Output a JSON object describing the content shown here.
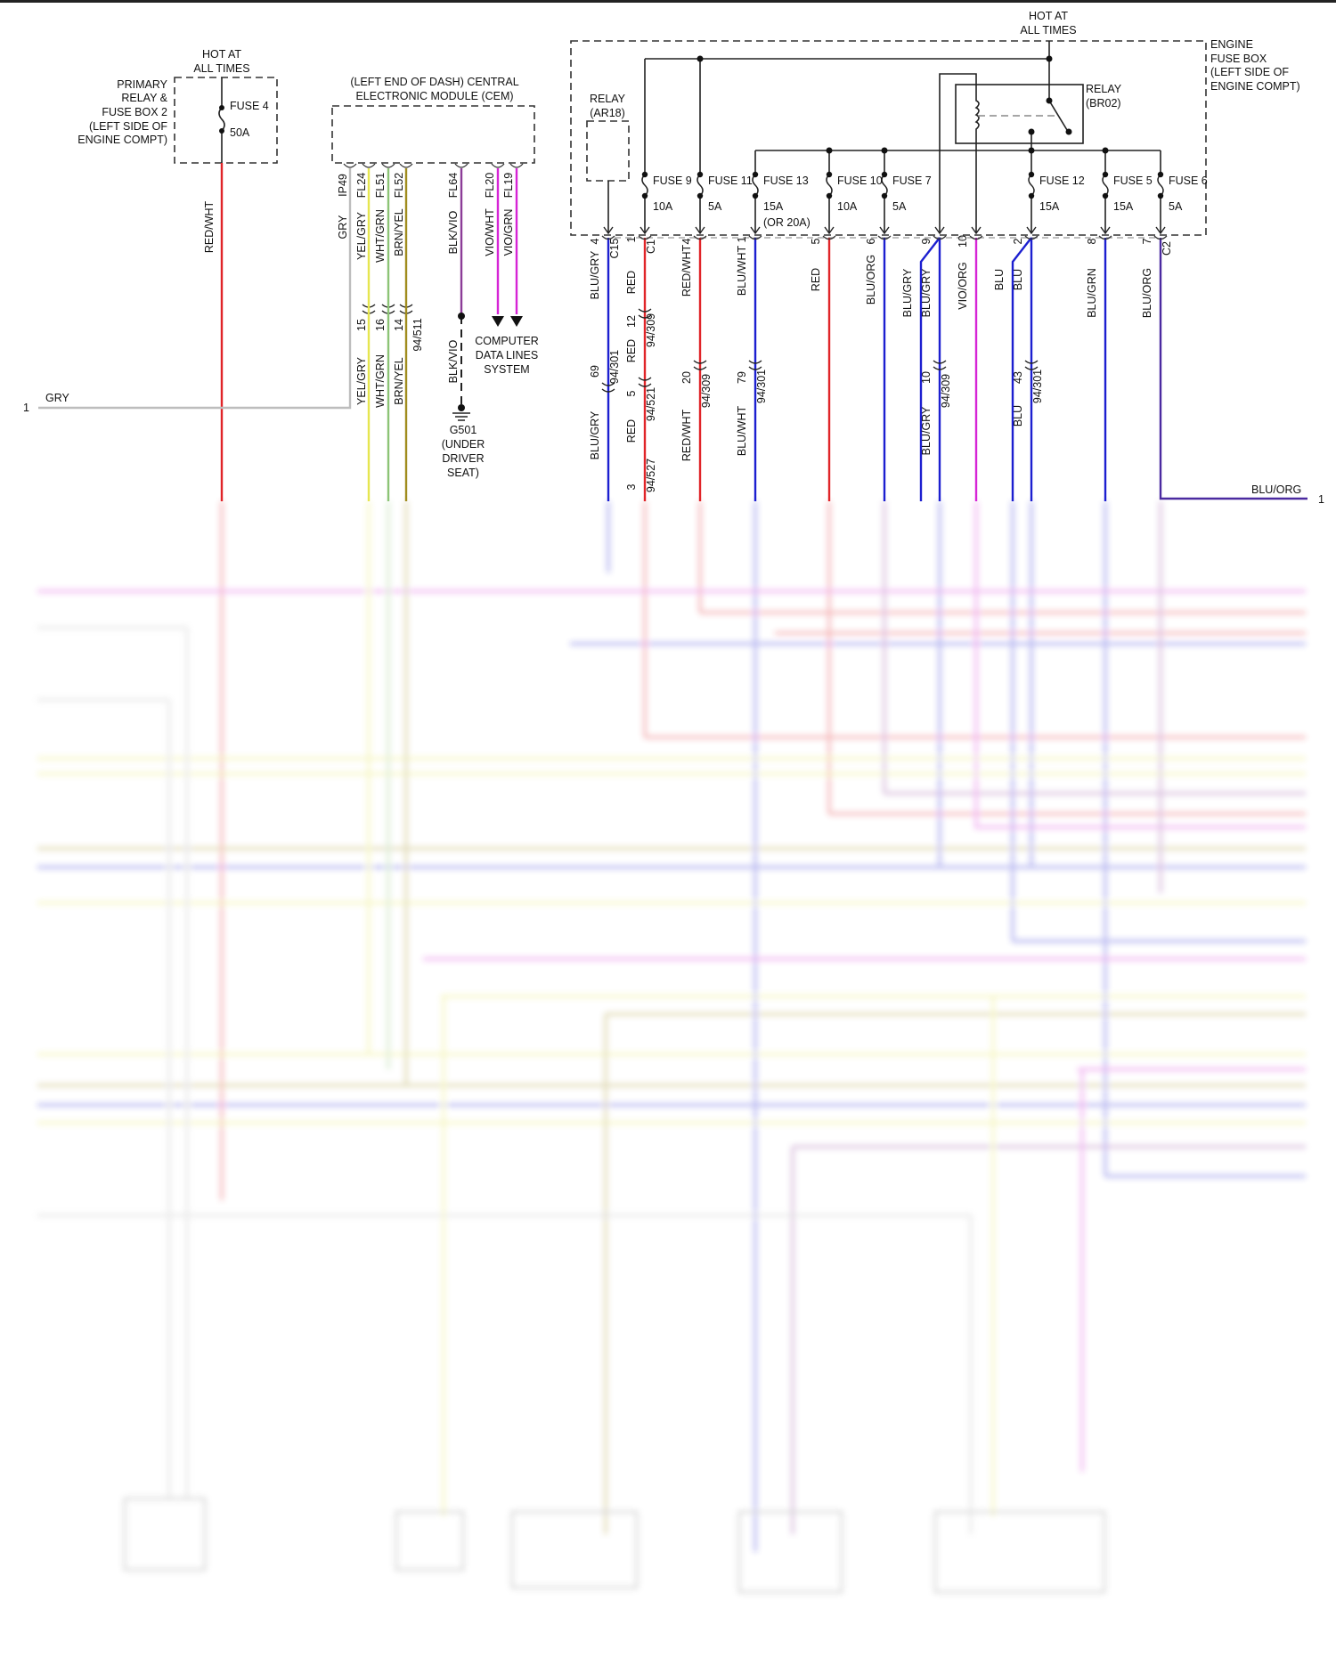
{
  "colors": {
    "red": "#e02428",
    "blue": "#1c1fd0",
    "magenta": "#d624d6",
    "yellow": "#e6e650",
    "green": "#8cc476",
    "olive": "#a08c1e",
    "gray": "#bdbdbd",
    "purple": "#8c3c98",
    "blu_org": "#4b2aa0"
  },
  "fuse_box_2": {
    "hot": [
      "HOT AT",
      "ALL TIMES"
    ],
    "name": [
      "PRIMARY",
      "RELAY &",
      "FUSE BOX 2",
      "(LEFT SIDE OF",
      "ENGINE COMPT)"
    ],
    "fuse": "FUSE 4",
    "amp": "50A",
    "wire": "RED/WHT"
  },
  "cem": {
    "title": [
      "(LEFT END OF DASH) CENTRAL",
      "ELECTRONIC MODULE (CEM)"
    ],
    "pins": [
      "IP49",
      "FL24",
      "FL51",
      "FL52",
      "FL64",
      "FL20",
      "FL19"
    ],
    "wires": [
      "GRY",
      "YEL/GRY",
      "WHT/GRN",
      "BRN/YEL",
      "BLK/VIO",
      "VIO/WHT",
      "VIO/GRN"
    ],
    "connector_pins": [
      "15",
      "16",
      "14"
    ],
    "connector": "94/511",
    "lower_wires": [
      "YEL/GRY",
      "WHT/GRN",
      "BRN/YEL",
      "BLK/VIO"
    ]
  },
  "gry_terminal": {
    "num": "1",
    "wire": "GRY"
  },
  "ground": {
    "lines": [
      "G501",
      "(UNDER",
      "DRIVER",
      "SEAT)"
    ]
  },
  "data_lines": {
    "lines": [
      "COMPUTER",
      "DATA LINES",
      "SYSTEM"
    ]
  },
  "engine_fuse_box": {
    "hot": [
      "HOT AT",
      "ALL TIMES"
    ],
    "name": [
      "ENGINE",
      "FUSE BOX",
      "(LEFT SIDE OF",
      "ENGINE COMPT)"
    ],
    "relay_ar18": [
      "RELAY",
      "(AR18)"
    ],
    "relay_br02": [
      "RELAY",
      "(BR02)"
    ],
    "fuses": [
      {
        "name": "FUSE 9",
        "amp": "10A"
      },
      {
        "name": "FUSE 11",
        "amp": "5A"
      },
      {
        "name": "FUSE 13",
        "amp": "15A",
        "note": "(OR 20A)"
      },
      {
        "name": "FUSE 10",
        "amp": "10A"
      },
      {
        "name": "FUSE 7",
        "amp": "5A"
      },
      {
        "name": "FUSE 12",
        "amp": "15A"
      },
      {
        "name": "FUSE 5",
        "amp": "15A"
      },
      {
        "name": "FUSE 6",
        "amp": "5A"
      }
    ]
  },
  "engine_wires": {
    "w1": {
      "pin": "4",
      "conn": "C15",
      "color": "BLU/GRY",
      "mid_pin": "69",
      "mid_conn": "94/301",
      "lower": "BLU/GRY"
    },
    "w2": {
      "pin": "1",
      "conn": "C1",
      "color": "RED",
      "c1_pin": "12",
      "c1_conn": "94/309",
      "color2": "RED",
      "c2_pin": "5",
      "c2_conn": "94/521",
      "lower": "RED",
      "end_pin": "3",
      "end_conn": "94/527"
    },
    "w3": {
      "pin": "4",
      "color": "RED/WHT",
      "mid_pin": "20",
      "mid_conn": "94/309",
      "lower": "RED/WHT"
    },
    "w4": {
      "pin": "1",
      "color": "BLU/WHT",
      "mid_pin": "79",
      "mid_conn": "94/301",
      "lower": "BLU/WHT"
    },
    "w5": {
      "pin": "5",
      "color": "RED"
    },
    "w6": {
      "pin": "6",
      "color": "BLU/ORG"
    },
    "w7": {
      "pin": "9",
      "color_a": "BLU/GRY",
      "color_b": "BLU/GRY",
      "mid_pin": "10",
      "mid_conn": "94/309",
      "lower": "BLU/GRY"
    },
    "w8": {
      "pin": "10",
      "color": "VIO/ORG"
    },
    "w9": {
      "pin": "2",
      "color_a": "BLU",
      "color_b": "BLU",
      "mid_pin": "43",
      "mid_conn": "94/301",
      "lower_a": "BLU"
    },
    "w10": {
      "pin": "8",
      "color": "BLU/GRN"
    },
    "w11": {
      "pin": "7",
      "conn": "C2",
      "color": "BLU/ORG"
    },
    "blu_org_terminal": {
      "wire": "BLU/ORG",
      "num": "1"
    }
  }
}
